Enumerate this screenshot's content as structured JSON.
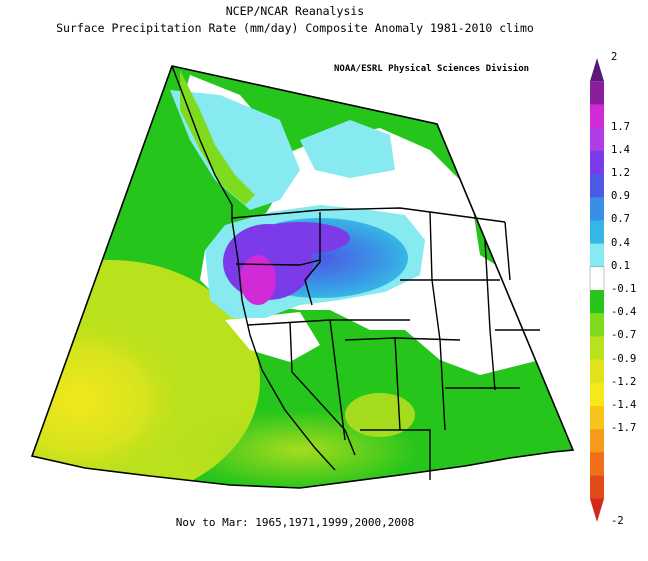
{
  "titles": {
    "line1": "NCEP/NCAR Reanalysis",
    "line2": "Surface Precipitation Rate (mm/day) Composite Anomaly 1981-2010 climo",
    "credit": "NOAA/ESRL Physical Sciences Division",
    "footer": "Nov to Mar: 1965,1971,1999,2000,2008"
  },
  "map": {
    "region": "Western North America (Pacific Northwest and western US)",
    "projection": "conic",
    "features": [
      "coastlines",
      "state boundaries",
      "US-Canada border"
    ]
  },
  "colorbar": {
    "units": "mm/day",
    "ticks": [
      "2",
      "1.7",
      "1.4",
      "1.2",
      "0.9",
      "0.7",
      "0.4",
      "0.1",
      "-0.1",
      "-0.4",
      "-0.7",
      "-0.9",
      "-1.2",
      "-1.4",
      "-1.7",
      "-2"
    ],
    "colors": [
      "#5a1a78",
      "#8a1e9e",
      "#d22ad6",
      "#b23ce6",
      "#7b3be8",
      "#4d5ae6",
      "#3b8ee6",
      "#36b6e6",
      "#86eaf0",
      "#ffffff",
      "#26c51c",
      "#7fdb1e",
      "#b9e11c",
      "#e2e11c",
      "#f6e81a",
      "#f7c41a",
      "#f79a1a",
      "#f0701a",
      "#e24a1a",
      "#d12a1a"
    ]
  }
}
